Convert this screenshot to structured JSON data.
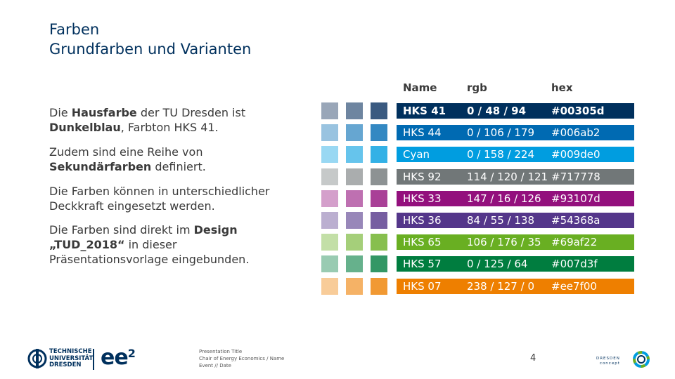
{
  "header": {
    "title": "Farben",
    "subtitle": "Grundfarben und Varianten"
  },
  "text": {
    "p1_a": "Die ",
    "p1_b": "Hausfarbe",
    "p1_c": " der TU Dresden ist ",
    "p1_d": "Dunkelblau",
    "p1_e": ", Farbton HKS 41.",
    "p2_a": "Zudem sind eine Reihe von ",
    "p2_b": "Sekundärfarben",
    "p2_c": " definiert.",
    "p3": "Die Farben können in unterschiedlicher Deckkraft eingesetzt werden.",
    "p4_a": "Die Farben sind direkt im ",
    "p4_b": "Design „TUD_2018“",
    "p4_c": " in dieser Präsentationsvorlage eingebunden."
  },
  "table": {
    "headers": {
      "name": "Name",
      "rgb": "rgb",
      "hex": "hex"
    },
    "rows": [
      {
        "name": "HKS 41",
        "rgb": "0 / 48 / 94",
        "hex": "#00305d",
        "color": "#00305d",
        "tints": [
          "#99a6b8",
          "#6e85a0",
          "#3a5a80"
        ],
        "bold": true
      },
      {
        "name": "HKS 44",
        "rgb": "0 / 106 / 179",
        "hex": "#006ab2",
        "color": "#006ab2",
        "tints": [
          "#99c3e0",
          "#66a6d1",
          "#3388c2"
        ],
        "bold": false
      },
      {
        "name": "Cyan",
        "rgb": "0 / 158 / 224",
        "hex": "#009de0",
        "color": "#009de0",
        "tints": [
          "#99d8f3",
          "#66c4ec",
          "#33b1e6"
        ],
        "bold": false
      },
      {
        "name": "HKS 92",
        "rgb": "114 / 120 / 121",
        "hex": "#717778",
        "color": "#717778",
        "tints": [
          "#c6c9c9",
          "#aaadae",
          "#8d9293"
        ],
        "bold": false
      },
      {
        "name": "HKS 33",
        "rgb": "147 / 16 / 126",
        "hex": "#93107d",
        "color": "#93107d",
        "tints": [
          "#d49fcb",
          "#be70b1",
          "#a94097"
        ],
        "bold": false
      },
      {
        "name": "HKS 36",
        "rgb": "84 / 55 / 138",
        "hex": "#54368a",
        "color": "#54368a",
        "tints": [
          "#bbafd0",
          "#9887b9",
          "#765ea1"
        ],
        "bold": false
      },
      {
        "name": "HKS 65",
        "rgb": "106 / 176 / 35",
        "hex": "#69af22",
        "color": "#69af22",
        "tints": [
          "#c3dfa7",
          "#a5cf7a",
          "#87bf4e"
        ],
        "bold": false
      },
      {
        "name": "HKS 57",
        "rgb": "0 / 125 / 64",
        "hex": "#007d3f",
        "color": "#007d3f",
        "tints": [
          "#99cbb2",
          "#66b18c",
          "#339765"
        ],
        "bold": false
      },
      {
        "name": "HKS 07",
        "rgb": "238 / 127 / 0",
        "hex": "#ee7f00",
        "color": "#ee7f00",
        "tints": [
          "#f8cc99",
          "#f5b266",
          "#f19933"
        ],
        "bold": false
      }
    ]
  },
  "footer": {
    "line1": "Presentation Title",
    "line2": "Chair of Energy Economics / Name",
    "line3": "Event // Date",
    "page_number": "4",
    "tud_line1": "TECHNISCHE",
    "tud_line2": "UNIVERSITÄT",
    "tud_line3": "DRESDEN",
    "ee2": "ee",
    "ee2_sup": "2",
    "dc_line1": "DRESDEN",
    "dc_line2": "concept"
  },
  "icons": {
    "tud_logo": "tud-seal-icon",
    "dresden_concept": "dresden-concept-ring-icon"
  }
}
